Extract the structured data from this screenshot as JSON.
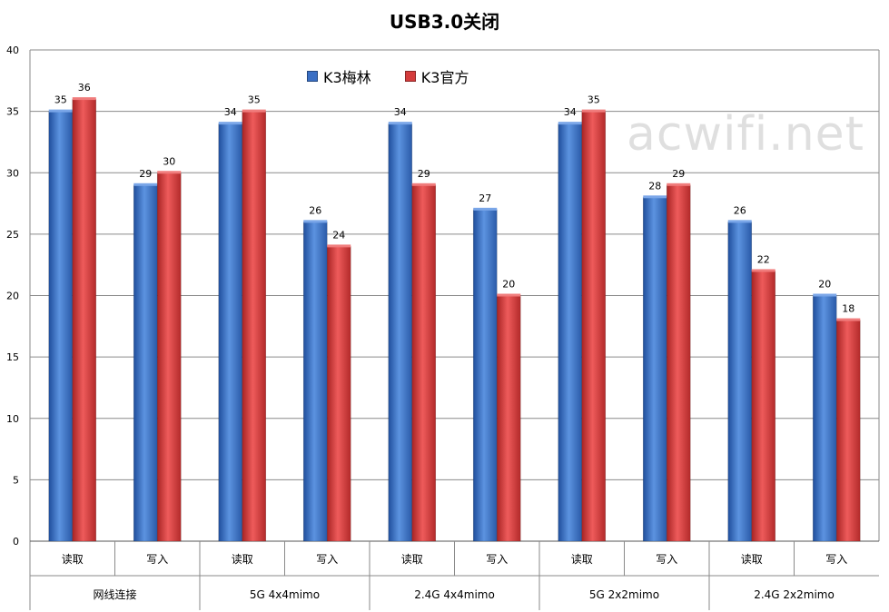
{
  "chart_data": {
    "type": "bar",
    "title": "USB3.0关闭",
    "ylim": [
      0,
      40
    ],
    "yticks": [
      0,
      5,
      10,
      15,
      20,
      25,
      30,
      35,
      40
    ],
    "grid": true,
    "legend_position": "top-center",
    "categories": [
      "读取",
      "写入",
      "读取",
      "写入",
      "读取",
      "写入",
      "读取",
      "写入",
      "读取",
      "写入"
    ],
    "groups": [
      "网线连接",
      "5G 4x4mimo",
      "2.4G 4x4mimo",
      "5G 2x2mimo",
      "2.4G 2x2mimo"
    ],
    "series": [
      {
        "name": "K3梅林",
        "color": "#3a6fc4",
        "values": [
          35,
          29,
          34,
          26,
          34,
          27,
          34,
          28,
          26,
          20
        ]
      },
      {
        "name": "K3官方",
        "color": "#d43c3c",
        "values": [
          36,
          30,
          35,
          24,
          29,
          20,
          35,
          29,
          22,
          18
        ]
      }
    ],
    "watermark": "acwifi.net"
  }
}
